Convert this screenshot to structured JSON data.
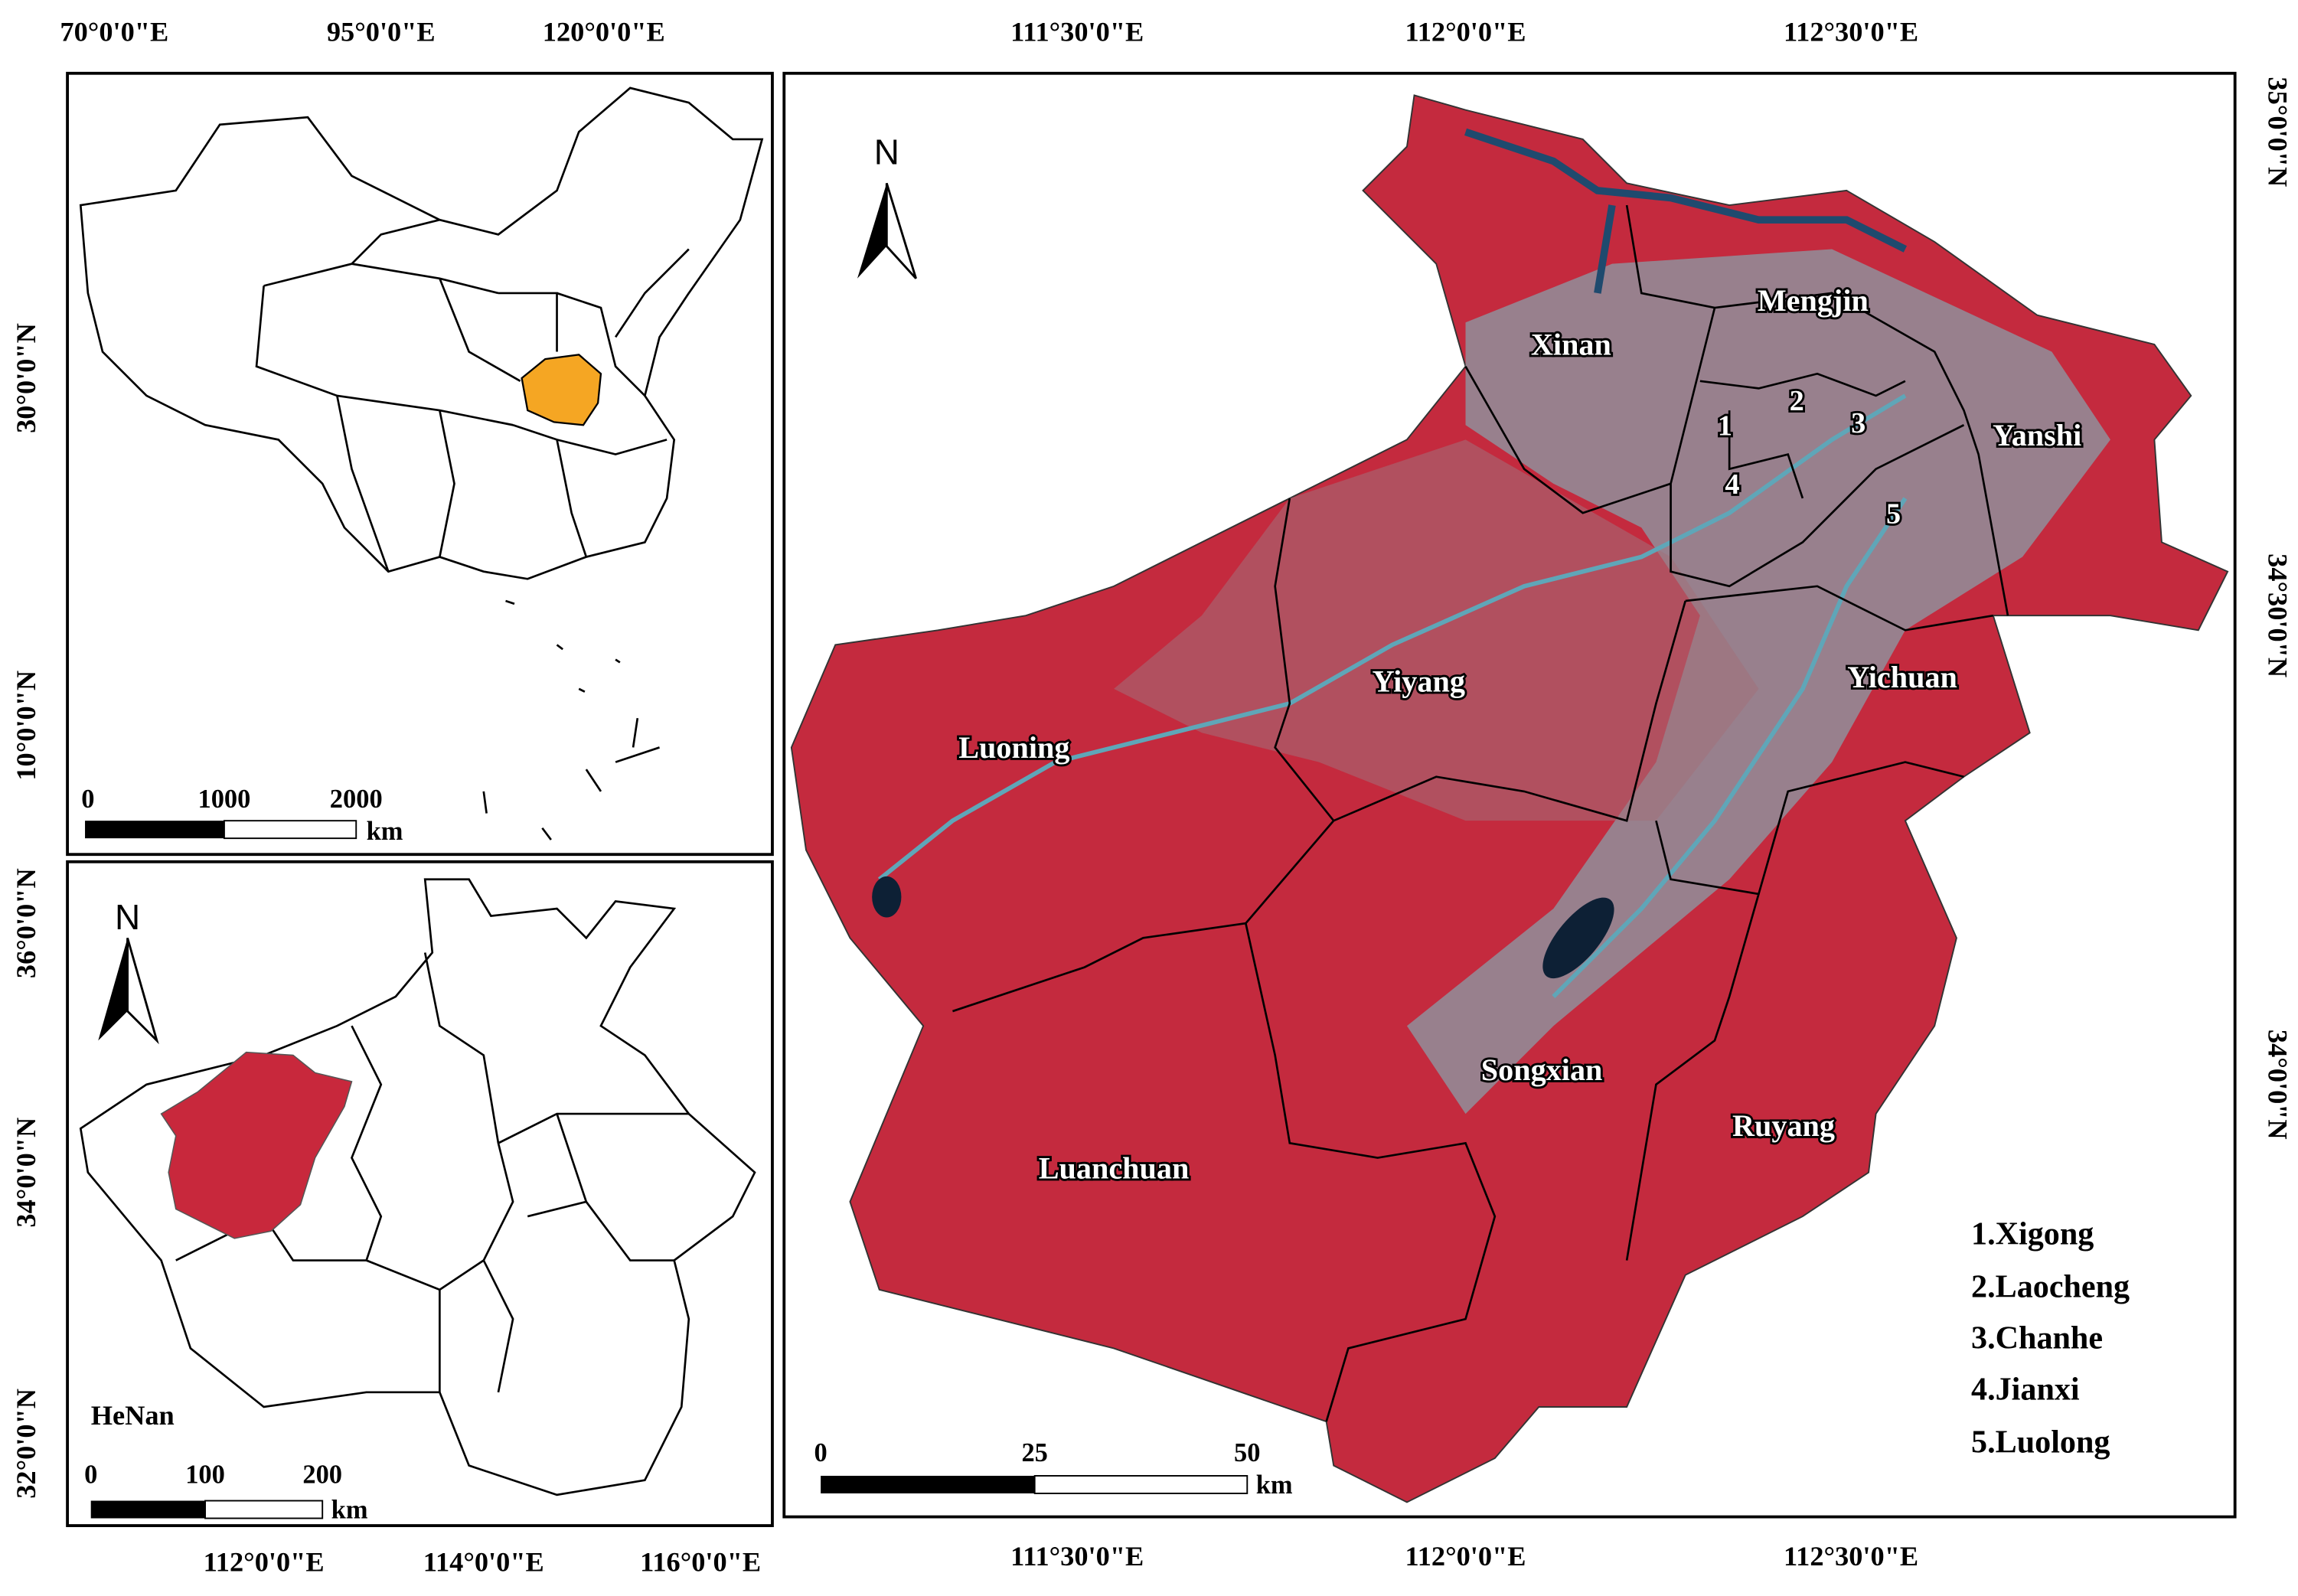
{
  "china_inset": {
    "top_labels": [
      "70°0'0\"E",
      "95°0'0\"E",
      "120°0'0\"E"
    ],
    "left_labels": [
      "30°0'0\"N",
      "10°0'0\"N"
    ],
    "scale": {
      "ticks": [
        "0",
        "1000",
        "2000"
      ],
      "unit": "km"
    }
  },
  "henan_inset": {
    "north": "N",
    "label": "HeNan",
    "left_labels": [
      "36°0'0\"N",
      "34°0'0\"N",
      "32°0'0\"N"
    ],
    "bottom_labels": [
      "112°0'0\"E",
      "114°0'0\"E",
      "116°0'0\"E"
    ],
    "scale": {
      "ticks": [
        "0",
        "100",
        "200"
      ],
      "unit": "km"
    }
  },
  "main_map": {
    "north": "N",
    "top_labels": [
      "111°30'0\"E",
      "112°0'0\"E",
      "112°30'0\"E"
    ],
    "bottom_labels": [
      "111°30'0\"E",
      "112°0'0\"E",
      "112°30'0\"E"
    ],
    "right_labels": [
      "35°0'0\"N",
      "34°30'0\"N",
      "34°0'0\"N"
    ],
    "places": [
      "Xinan",
      "Mengjin",
      "Yanshi",
      "Yiyang",
      "Yichuan",
      "Luoning",
      "Songxian",
      "Ruyang",
      "Luanchuan"
    ],
    "numbers": [
      "1",
      "2",
      "3",
      "4",
      "5"
    ],
    "legend": [
      "1.Xigong",
      "2.Laocheng",
      "3.Chanhe",
      "4.Jianxi",
      "5.Luolong"
    ],
    "scale": {
      "ticks": [
        "0",
        "25",
        "50"
      ],
      "unit": "km"
    }
  }
}
